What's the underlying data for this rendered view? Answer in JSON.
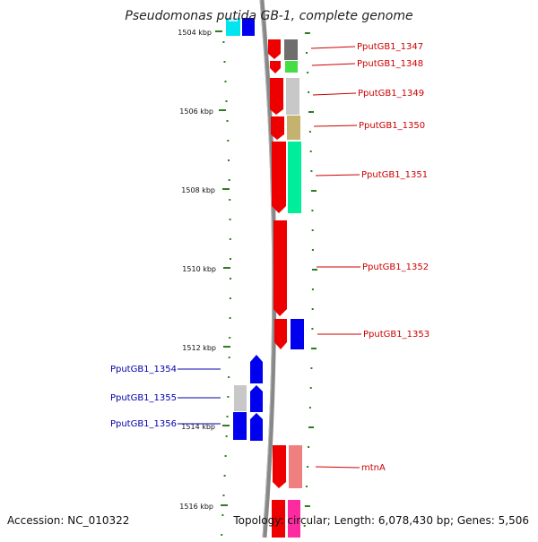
{
  "title": "Pseudomonas putida GB-1, complete genome",
  "accession": "Accession: NC_010322",
  "topology": "Topology: circular; Length: 6,078,430 bp; Genes: 5,506",
  "colors": {
    "backbone": "#888888",
    "tick": "#2e7d1f",
    "forward_label": "#cc0000",
    "reverse_label": "#0000aa"
  },
  "axis_ticks": [
    "1504 kbp",
    "1506 kbp",
    "1508 kbp",
    "1510 kbp",
    "1512 kbp",
    "1514 kbp",
    "1516 kbp"
  ],
  "forward_labels": [
    "PputGB1_1347",
    "PputGB1_1348",
    "PputGB1_1349",
    "PputGB1_1350",
    "PputGB1_1351",
    "PputGB1_1352",
    "PputGB1_1353",
    "mtnA"
  ],
  "reverse_labels": [
    "PputGB1_1354",
    "PputGB1_1355",
    "PputGB1_1356"
  ]
}
